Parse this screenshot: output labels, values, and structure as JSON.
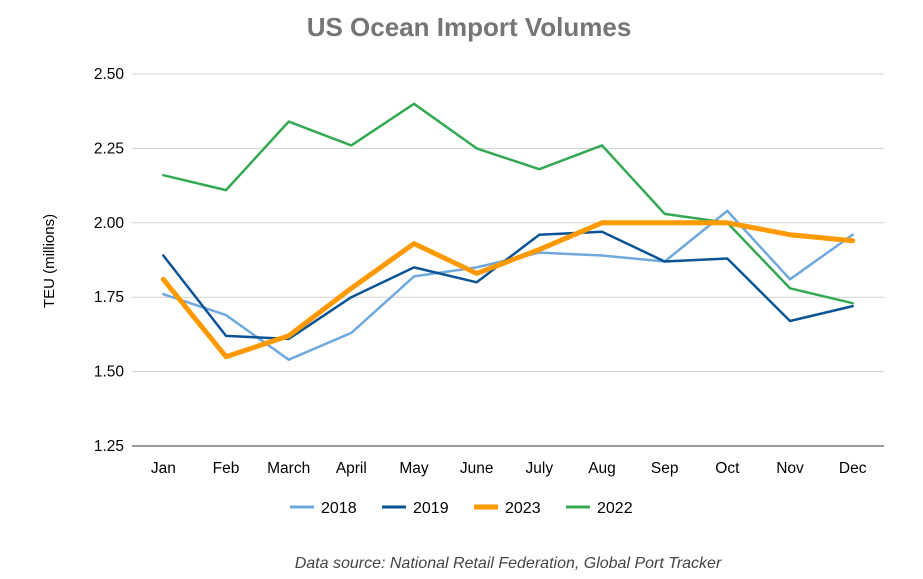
{
  "chart_data": {
    "type": "line",
    "title": "US Ocean Import Volumes",
    "xlabel": "",
    "ylabel": "TEU (millions)",
    "ylim": [
      1.25,
      2.5
    ],
    "yticks": [
      "1.25",
      "1.50",
      "1.75",
      "2.00",
      "2.25",
      "2.50"
    ],
    "grid": true,
    "legend_position": "bottom",
    "categories": [
      "Jan",
      "Feb",
      "March",
      "April",
      "May",
      "June",
      "July",
      "Aug",
      "Sep",
      "Oct",
      "Nov",
      "Dec"
    ],
    "series": [
      {
        "name": "2018",
        "color": "#6fa8dc",
        "values": [
          1.76,
          1.69,
          1.54,
          1.63,
          1.82,
          1.85,
          1.9,
          1.89,
          1.87,
          2.04,
          1.81,
          1.96
        ]
      },
      {
        "name": "2019",
        "color": "#0b5394",
        "values": [
          1.89,
          1.62,
          1.61,
          1.75,
          1.85,
          1.8,
          1.96,
          1.97,
          1.87,
          1.88,
          1.67,
          1.72
        ]
      },
      {
        "name": "2023",
        "color": "#ff9900",
        "values": [
          1.81,
          1.55,
          1.62,
          1.78,
          1.93,
          1.83,
          1.91,
          2.0,
          2.0,
          2.0,
          1.96,
          1.94
        ]
      },
      {
        "name": "2022",
        "color": "#34a853",
        "values": [
          2.16,
          2.11,
          2.34,
          2.26,
          2.4,
          2.25,
          2.18,
          2.26,
          2.03,
          2.0,
          1.78,
          1.73
        ]
      }
    ]
  },
  "source_note": "Data source: National Retail Federation, Global Port Tracker"
}
